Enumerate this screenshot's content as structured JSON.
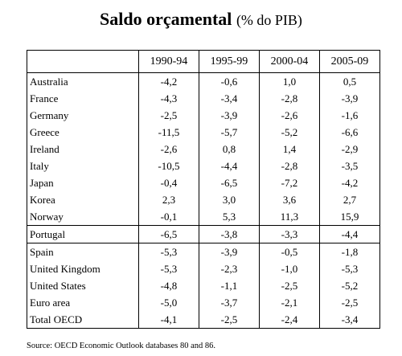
{
  "title": {
    "main": "Saldo orçamental",
    "sub": "(% do PIB)"
  },
  "table": {
    "columns": [
      "1990-94",
      "1995-99",
      "2000-04",
      "2005-09"
    ],
    "rows": [
      {
        "country": "Australia",
        "values": [
          "-4,2",
          "-0,6",
          "1,0",
          "0,5"
        ]
      },
      {
        "country": "France",
        "values": [
          "-4,3",
          "-3,4",
          "-2,8",
          "-3,9"
        ]
      },
      {
        "country": "Germany",
        "values": [
          "-2,5",
          "-3,9",
          "-2,6",
          "-1,6"
        ]
      },
      {
        "country": "Greece",
        "values": [
          "-11,5",
          "-5,7",
          "-5,2",
          "-6,6"
        ]
      },
      {
        "country": "Ireland",
        "values": [
          "-2,6",
          "0,8",
          "1,4",
          "-2,9"
        ]
      },
      {
        "country": "Italy",
        "values": [
          "-10,5",
          "-4,4",
          "-2,8",
          "-3,5"
        ]
      },
      {
        "country": "Japan",
        "values": [
          "-0,4",
          "-6,5",
          "-7,2",
          "-4,2"
        ]
      },
      {
        "country": "Korea",
        "values": [
          "2,3",
          "3,0",
          "3,6",
          "2,7"
        ]
      },
      {
        "country": "Norway",
        "values": [
          "-0,1",
          "5,3",
          "11,3",
          "15,9"
        ]
      },
      {
        "country": "Portugal",
        "values": [
          "-6,5",
          "-3,8",
          "-3,3",
          "-4,4"
        ]
      },
      {
        "country": "Spain",
        "values": [
          "-5,3",
          "-3,9",
          "-0,5",
          "-1,8"
        ]
      },
      {
        "country": "United Kingdom",
        "values": [
          "-5,3",
          "-2,3",
          "-1,0",
          "-5,3"
        ]
      },
      {
        "country": "United States",
        "values": [
          "-4,8",
          "-1,1",
          "-2,5",
          "-5,2"
        ]
      },
      {
        "country": "Euro area",
        "values": [
          "-5,0",
          "-3,7",
          "-2,1",
          "-2,5"
        ]
      },
      {
        "country": "Total OECD",
        "values": [
          "-4,1",
          "-2,5",
          "-2,4",
          "-3,4"
        ]
      }
    ]
  },
  "source": "Source: OECD Economic Outlook databases 80 and 86."
}
